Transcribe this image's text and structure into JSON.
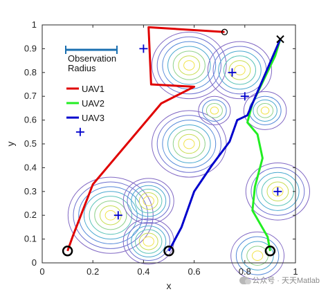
{
  "chart_data": {
    "type": "line",
    "title": "",
    "xlabel": "x",
    "ylabel": "y",
    "xlim": [
      0,
      1
    ],
    "ylim": [
      0,
      1
    ],
    "xticks": [
      "0",
      "0.2",
      "0.4",
      "0.6",
      "0.8",
      "1"
    ],
    "yticks": [
      "0",
      "0.1",
      "0.2",
      "0.3",
      "0.4",
      "0.5",
      "0.6",
      "0.7",
      "0.8",
      "0.9",
      "1"
    ],
    "series": [
      {
        "name": "UAV1",
        "color": "#e00000",
        "points": [
          [
            0.1,
            0.05
          ],
          [
            0.12,
            0.11
          ],
          [
            0.2,
            0.33
          ],
          [
            0.47,
            0.67
          ],
          [
            0.6,
            0.74
          ],
          [
            0.43,
            0.75
          ],
          [
            0.42,
            0.99
          ],
          [
            0.72,
            0.97
          ]
        ]
      },
      {
        "name": "UAV2",
        "color": "#22ee22",
        "points": [
          [
            0.9,
            0.05
          ],
          [
            0.89,
            0.11
          ],
          [
            0.83,
            0.22
          ],
          [
            0.84,
            0.32
          ],
          [
            0.87,
            0.44
          ],
          [
            0.85,
            0.54
          ],
          [
            0.81,
            0.59
          ],
          [
            0.83,
            0.67
          ],
          [
            0.92,
            0.87
          ],
          [
            0.94,
            0.94
          ]
        ]
      },
      {
        "name": "UAV3",
        "color": "#0000cc",
        "points": [
          [
            0.5,
            0.05
          ],
          [
            0.55,
            0.15
          ],
          [
            0.6,
            0.3
          ],
          [
            0.67,
            0.41
          ],
          [
            0.74,
            0.51
          ],
          [
            0.77,
            0.6
          ],
          [
            0.79,
            0.61
          ],
          [
            0.81,
            0.62
          ],
          [
            0.94,
            0.94
          ]
        ]
      }
    ],
    "start_markers": [
      [
        0.1,
        0.05
      ],
      [
        0.5,
        0.05
      ],
      [
        0.9,
        0.05
      ]
    ],
    "goal_circle": [
      0.72,
      0.97
    ],
    "goal_cross": [
      0.94,
      0.94
    ],
    "targets": [
      [
        0.15,
        0.55
      ],
      [
        0.4,
        0.9
      ],
      [
        0.75,
        0.8
      ],
      [
        0.8,
        0.7
      ],
      [
        0.3,
        0.2
      ],
      [
        0.93,
        0.3
      ]
    ],
    "contour_centers": [
      {
        "x": 0.27,
        "y": 0.2,
        "r": [
          0.02,
          0.04,
          0.06,
          0.08,
          0.1,
          0.12,
          0.14,
          0.16
        ]
      },
      {
        "x": 0.42,
        "y": 0.26,
        "r": [
          0.02,
          0.035,
          0.05,
          0.065,
          0.08,
          0.095
        ]
      },
      {
        "x": 0.42,
        "y": 0.09,
        "r": [
          0.02,
          0.035,
          0.05,
          0.065,
          0.08,
          0.095
        ]
      },
      {
        "x": 0.58,
        "y": 0.5,
        "r": [
          0.02,
          0.04,
          0.06,
          0.08,
          0.1,
          0.12,
          0.14
        ]
      },
      {
        "x": 0.58,
        "y": 0.83,
        "r": [
          0.02,
          0.04,
          0.06,
          0.08,
          0.1,
          0.12,
          0.14
        ]
      },
      {
        "x": 0.78,
        "y": 0.81,
        "r": [
          0.02,
          0.04,
          0.06,
          0.08,
          0.1,
          0.12
        ]
      },
      {
        "x": 0.68,
        "y": 0.64,
        "r": [
          0.015,
          0.03,
          0.045,
          0.06
        ]
      },
      {
        "x": 0.88,
        "y": 0.64,
        "r": [
          0.015,
          0.03,
          0.045,
          0.06,
          0.08
        ]
      },
      {
        "x": 0.93,
        "y": 0.3,
        "r": [
          0.02,
          0.04,
          0.06,
          0.08,
          0.1,
          0.12
        ]
      },
      {
        "x": 0.85,
        "y": 0.03,
        "r": [
          0.02,
          0.04,
          0.06,
          0.08,
          0.1
        ]
      }
    ],
    "legend": {
      "placement": "upper-left",
      "radius_label_line1": "Observation",
      "radius_label_line2": "Radius",
      "entries": [
        "UAV1",
        "UAV2",
        "UAV3"
      ]
    },
    "grid": false
  },
  "watermark": "公众号 · 天天Matlab"
}
